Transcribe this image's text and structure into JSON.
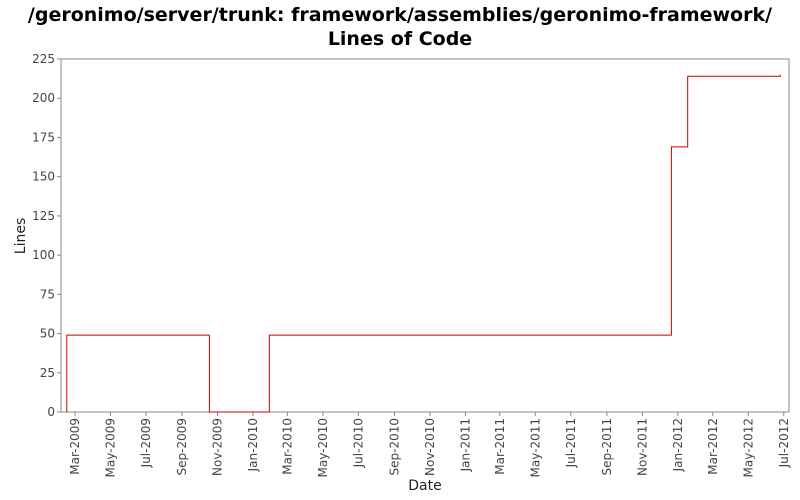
{
  "chart_data": {
    "type": "line",
    "title": "/geronimo/server/trunk: framework/assemblies/geronimo-framework/",
    "subtitle": "Lines of Code",
    "xlabel": "Date",
    "ylabel": "Lines",
    "ylim": [
      0,
      225
    ],
    "yticks": [
      0,
      25,
      50,
      75,
      100,
      125,
      150,
      175,
      200,
      225
    ],
    "xlim": [
      "2009-02-05",
      "2012-07-10"
    ],
    "xticks": [
      "Mar-2009",
      "May-2009",
      "Jul-2009",
      "Sep-2009",
      "Nov-2009",
      "Jan-2010",
      "Mar-2010",
      "May-2010",
      "Jul-2010",
      "Sep-2010",
      "Nov-2010",
      "Jan-2011",
      "Mar-2011",
      "May-2011",
      "Jul-2011",
      "Sep-2011",
      "Nov-2011",
      "Jan-2012",
      "Mar-2012",
      "May-2012",
      "Jul-2012"
    ],
    "grid": false,
    "line_color": "#cc0000",
    "step": true,
    "series": [
      {
        "x": [
          "2009-02-15",
          "2009-02-15",
          "2009-10-18",
          "2009-10-18",
          "2010-01-29",
          "2011-12-21",
          "2012-01-18",
          "2012-06-25"
        ],
        "y": [
          0,
          49,
          49,
          0,
          49,
          169,
          214,
          215
        ]
      }
    ]
  }
}
